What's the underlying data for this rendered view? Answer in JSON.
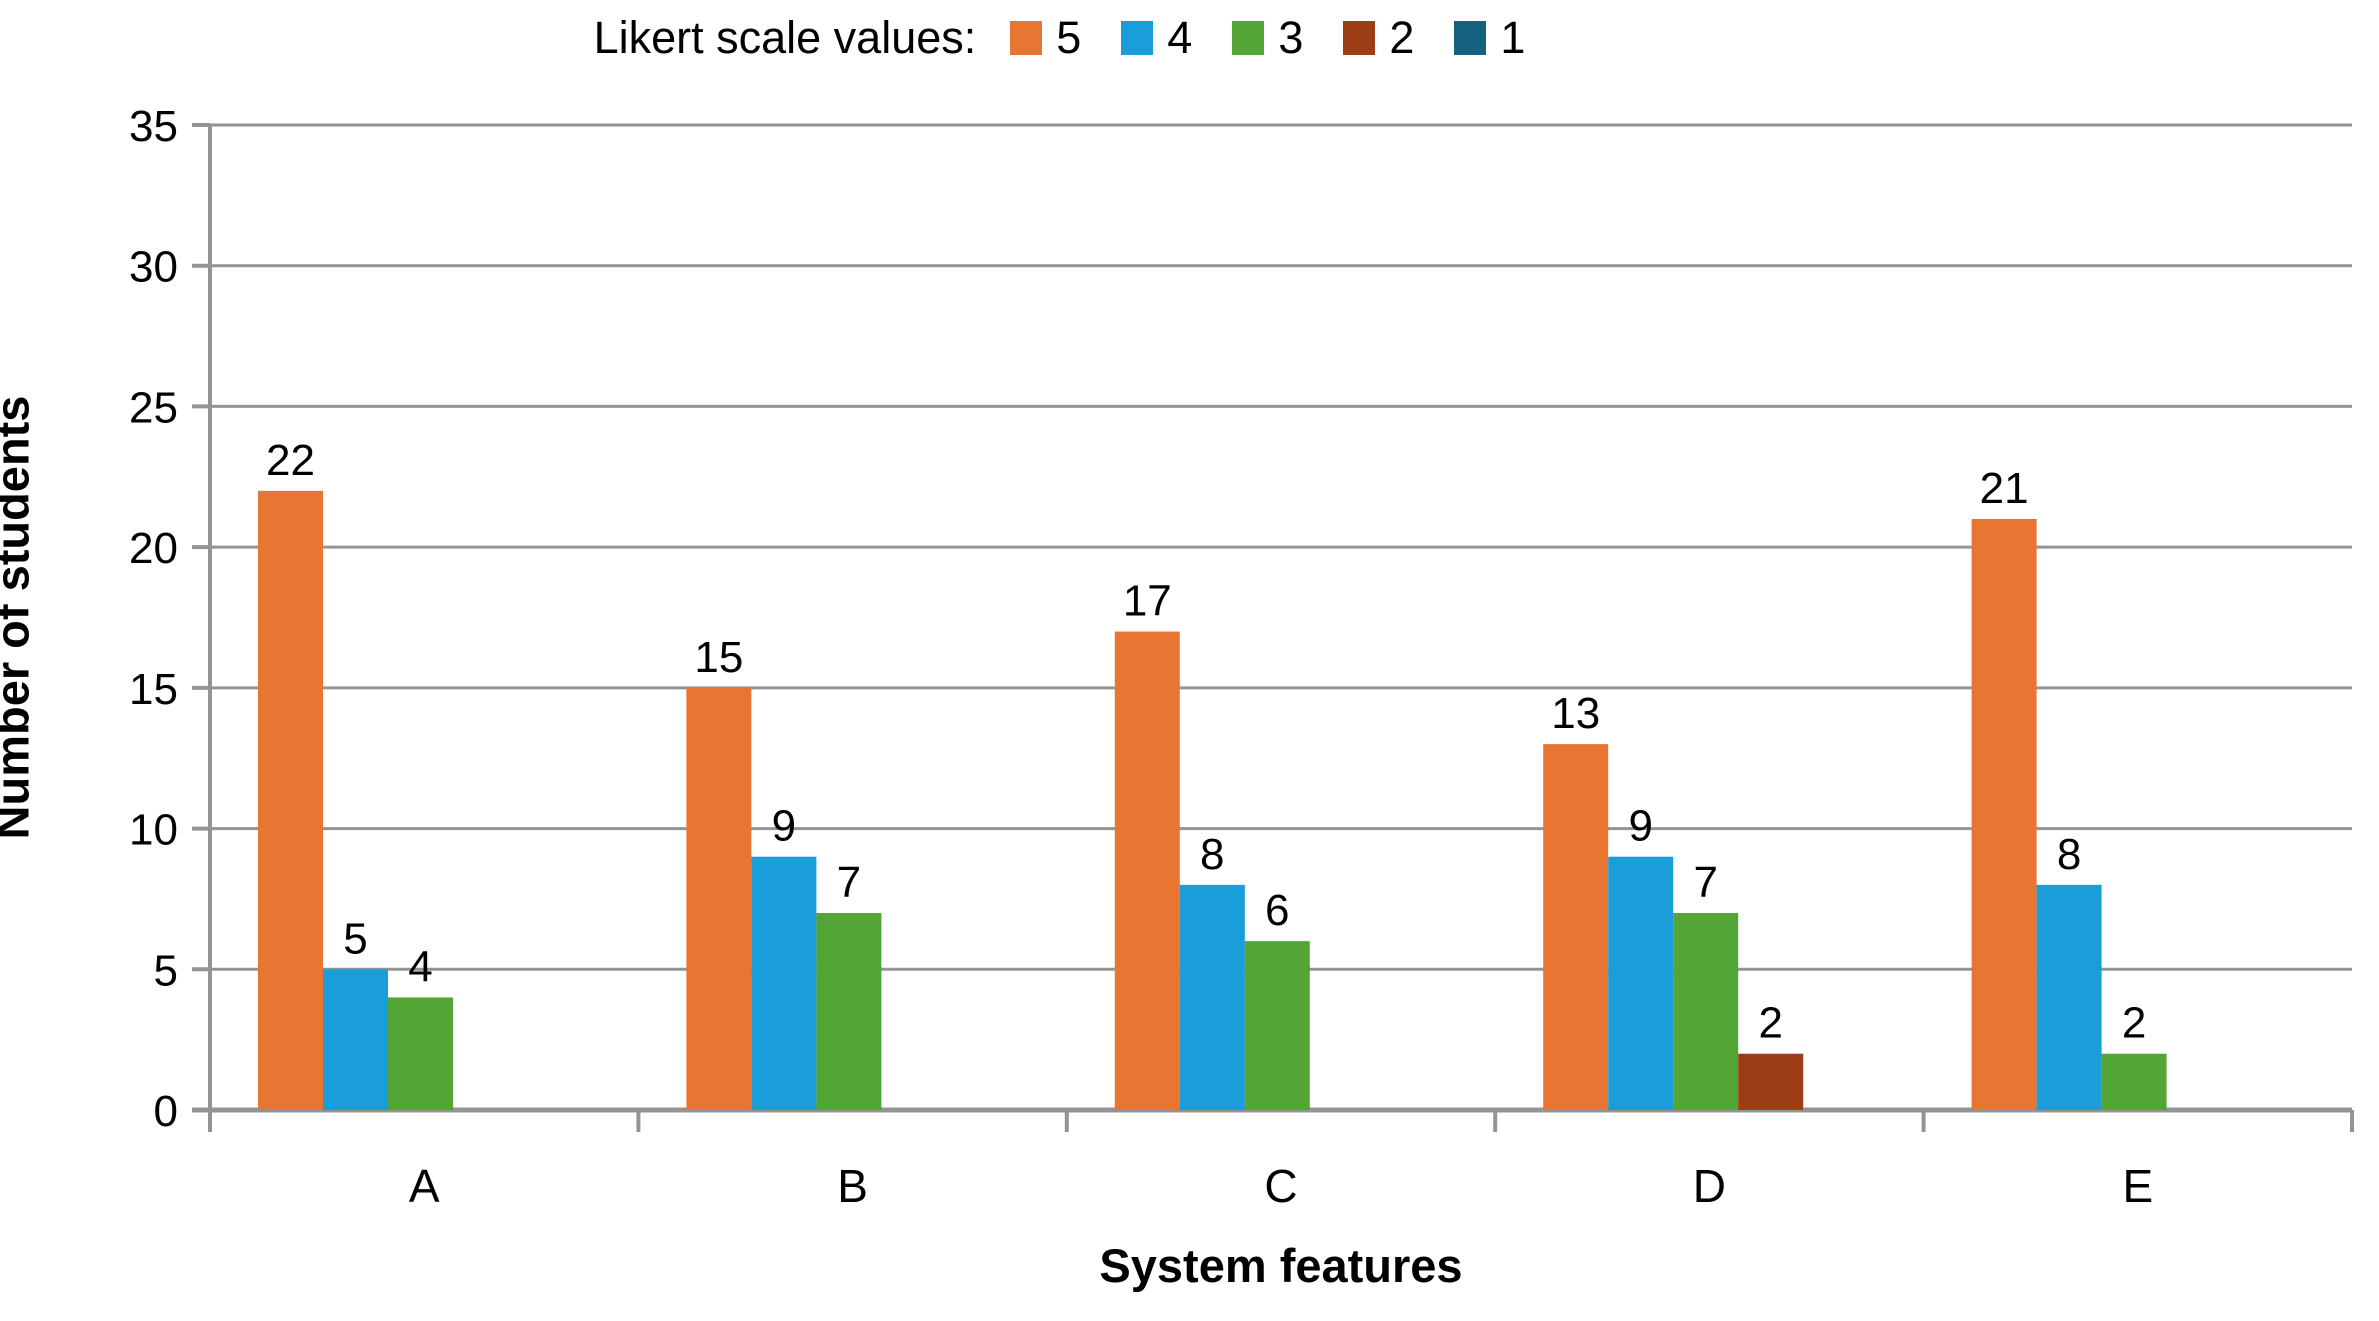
{
  "legend": {
    "title": "Likert scale values:",
    "items": [
      {
        "label": "5",
        "color": "#E87532"
      },
      {
        "label": "4",
        "color": "#1A9ED9"
      },
      {
        "label": "3",
        "color": "#53A636"
      },
      {
        "label": "2",
        "color": "#9C3D16"
      },
      {
        "label": "1",
        "color": "#14627E"
      }
    ]
  },
  "chart_data": {
    "type": "bar",
    "title": "Likert scale values:",
    "xlabel": "System features",
    "ylabel": "Number of students",
    "categories": [
      "A",
      "B",
      "C",
      "D",
      "E"
    ],
    "series": [
      {
        "name": "5",
        "color": "#E87532",
        "values": [
          22,
          15,
          17,
          13,
          21
        ]
      },
      {
        "name": "4",
        "color": "#1A9ED9",
        "values": [
          5,
          9,
          8,
          9,
          8
        ]
      },
      {
        "name": "3",
        "color": "#53A636",
        "values": [
          4,
          7,
          6,
          7,
          2
        ]
      },
      {
        "name": "2",
        "color": "#9C3D16",
        "values": [
          0,
          0,
          0,
          2,
          0
        ]
      },
      {
        "name": "1",
        "color": "#14627E",
        "values": [
          0,
          0,
          0,
          0,
          0
        ]
      }
    ],
    "ylim": [
      0,
      35
    ],
    "yticks": [
      0,
      5,
      10,
      15,
      20,
      25,
      30,
      35
    ],
    "grid": true,
    "data_labels": true,
    "legend_position": "top"
  },
  "colors": {
    "grid": "#949494",
    "axis": "#8C8C8C",
    "text": "#000000"
  }
}
